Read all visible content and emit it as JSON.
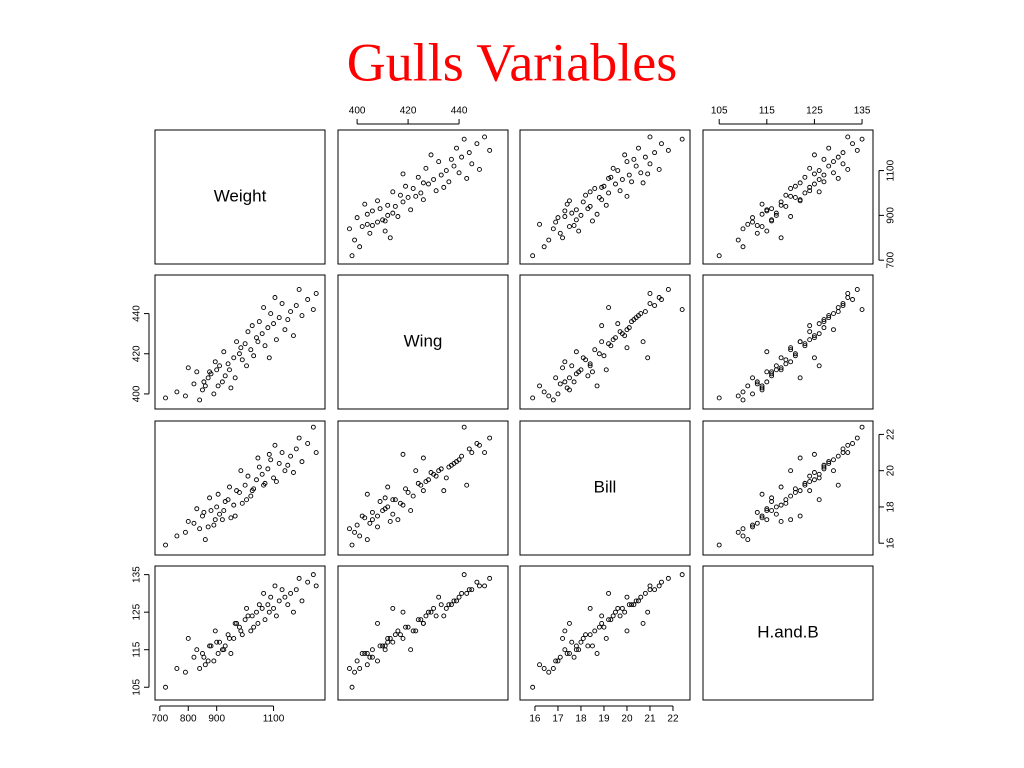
{
  "chart_data": {
    "type": "scatter",
    "title": "Gulls Variables",
    "variables": [
      {
        "name": "Weight",
        "lim": [
          683,
          1281
        ],
        "xticks": [
          700,
          800,
          900,
          1100
        ],
        "yticks": [
          700,
          900,
          1100
        ],
        "values": [
          760,
          820,
          850,
          870,
          880,
          900,
          920,
          940,
          960,
          980,
          1000,
          1020,
          1040,
          1060,
          1080,
          1100,
          1120,
          1140,
          1160,
          1180,
          1200,
          1220,
          1250,
          720,
          790,
          830,
          860,
          890,
          910,
          930,
          950,
          970,
          990,
          1010,
          1030,
          1050,
          1070,
          1090,
          1110,
          1130,
          1150,
          1170,
          1190,
          1240,
          800,
          840,
          855,
          875,
          895,
          905,
          925,
          945,
          965,
          985,
          1005,
          1025,
          1045,
          1065,
          1085,
          1105
        ]
      },
      {
        "name": "Wing",
        "lim": [
          392.5,
          459.2
        ],
        "xticks": [
          400,
          420,
          440
        ],
        "yticks": [
          400,
          420,
          440
        ],
        "values": [
          401,
          405,
          402,
          408,
          410,
          412,
          406,
          415,
          418,
          420,
          425,
          422,
          428,
          430,
          433,
          435,
          438,
          432,
          441,
          444,
          439,
          447,
          450,
          398,
          399,
          411,
          404,
          400,
          414,
          409,
          403,
          426,
          417,
          431,
          419,
          436,
          424,
          440,
          427,
          445,
          437,
          429,
          452,
          442,
          413,
          397,
          406,
          411,
          416,
          404,
          421,
          412,
          408,
          423,
          414,
          434,
          426,
          443,
          418,
          448
        ]
      },
      {
        "name": "Bill",
        "lim": [
          15.35,
          22.74
        ],
        "xticks": [
          16,
          17,
          18,
          19,
          20,
          21,
          22
        ],
        "yticks": [
          16,
          18,
          20,
          22
        ],
        "values": [
          16.4,
          17.1,
          17.5,
          16.9,
          17.8,
          18.0,
          17.3,
          18.4,
          18.1,
          18.8,
          19.2,
          18.6,
          19.5,
          19.8,
          20.1,
          19.6,
          20.4,
          20.0,
          20.8,
          21.2,
          20.5,
          21.5,
          21.0,
          15.9,
          16.6,
          17.9,
          16.2,
          17.0,
          17.6,
          18.3,
          17.4,
          18.9,
          18.2,
          19.7,
          19.0,
          20.2,
          19.3,
          20.6,
          19.4,
          21.0,
          20.3,
          19.9,
          21.8,
          22.4,
          17.2,
          16.8,
          17.7,
          18.5,
          17.3,
          18.7,
          17.8,
          19.1,
          17.5,
          20.0,
          18.4,
          18.9,
          20.7,
          19.2,
          20.9,
          21.4
        ]
      },
      {
        "name": "H.and.B",
        "lim": [
          101.6,
          137.3
        ],
        "xticks": [
          105,
          115,
          125,
          135
        ],
        "yticks": [
          105,
          115,
          125,
          135
        ],
        "values": [
          110,
          113,
          114,
          112,
          116,
          117,
          115,
          119,
          118,
          121,
          123,
          120,
          125,
          126,
          127,
          126,
          128,
          129,
          130,
          131,
          128,
          133,
          132,
          105,
          109,
          115,
          111,
          112,
          117,
          116,
          114,
          122,
          119,
          124,
          121,
          127,
          123,
          129,
          124,
          131,
          127,
          125,
          134,
          135,
          118,
          110,
          113,
          116,
          120,
          114,
          115,
          118,
          122,
          120,
          126,
          124,
          122,
          130,
          125,
          132
        ]
      }
    ]
  }
}
